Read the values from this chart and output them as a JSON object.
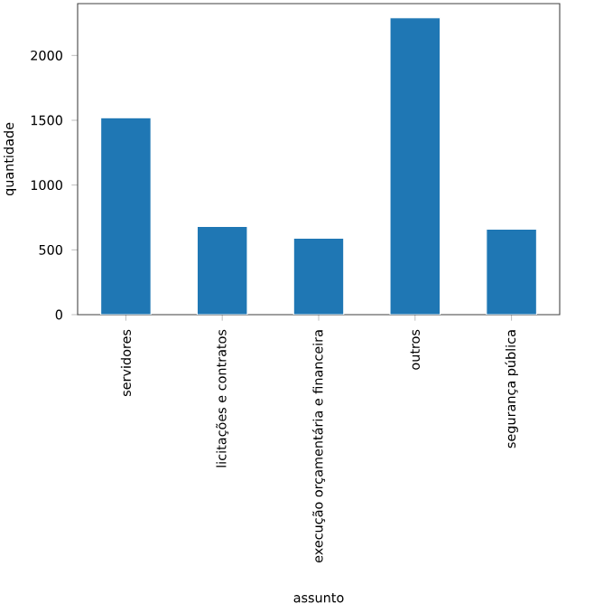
{
  "chart_data": {
    "type": "bar",
    "xlabel": "assunto",
    "ylabel": "quantidade",
    "color": "#1f77b4",
    "categories": [
      "servidores",
      "licitações e contratos",
      "execução orçamentária e financeira",
      "outros",
      "segurança pública"
    ],
    "values": [
      1520,
      680,
      590,
      2290,
      660
    ],
    "ylim": [
      0,
      2400
    ],
    "yticks": [
      0,
      500,
      1000,
      1500,
      2000
    ]
  }
}
